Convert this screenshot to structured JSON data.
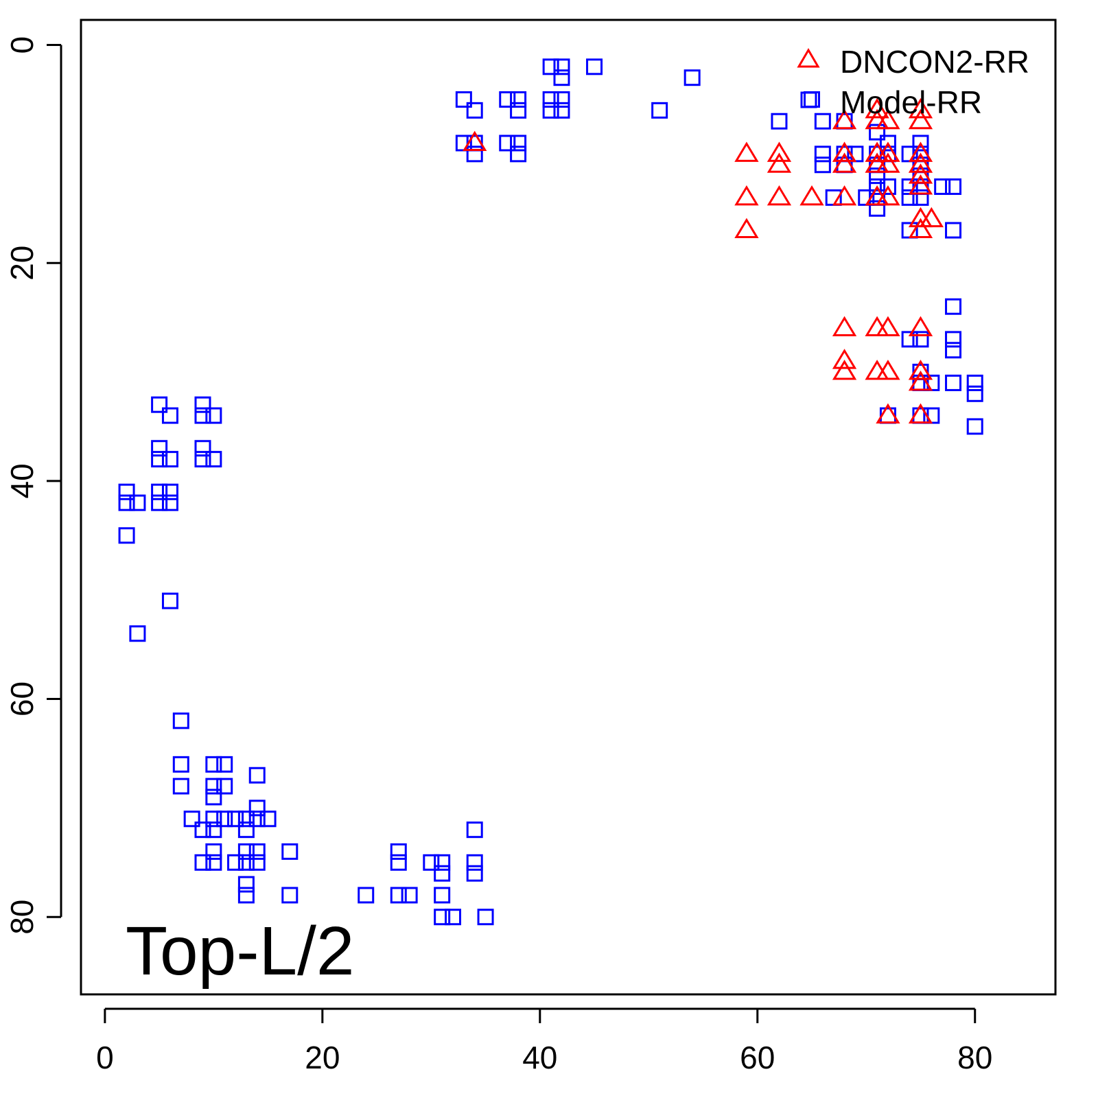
{
  "chart_data": {
    "type": "scatter",
    "title": "",
    "annotation": "Top-L/2",
    "xlabel": "",
    "ylabel": "",
    "xlim": [
      -2.2,
      87.4
    ],
    "ylim": [
      -2.3,
      87.1
    ],
    "y_inverted": true,
    "x_ticks": [
      0,
      20,
      40,
      60,
      80
    ],
    "y_ticks": [
      0,
      20,
      40,
      60,
      80
    ],
    "x_tick_labels": [
      "0",
      "20",
      "40",
      "60",
      "80"
    ],
    "y_tick_labels": [
      "0",
      "20",
      "40",
      "60",
      "80"
    ],
    "grid": false,
    "legend_position": "top-right",
    "series": [
      {
        "name": "DNCON2-RR",
        "marker": "triangle",
        "color": "#ff0000",
        "points": [
          [
            34,
            9
          ],
          [
            59,
            10
          ],
          [
            59,
            14
          ],
          [
            59,
            17
          ],
          [
            62,
            10
          ],
          [
            62,
            11
          ],
          [
            62,
            14
          ],
          [
            65,
            14
          ],
          [
            68,
            7
          ],
          [
            68,
            10
          ],
          [
            68,
            11
          ],
          [
            68,
            14
          ],
          [
            71,
            6
          ],
          [
            71,
            7
          ],
          [
            72,
            7
          ],
          [
            71,
            10
          ],
          [
            72,
            10
          ],
          [
            71,
            11
          ],
          [
            72,
            11
          ],
          [
            71,
            14
          ],
          [
            72,
            14
          ],
          [
            75,
            6
          ],
          [
            75,
            7
          ],
          [
            75,
            10
          ],
          [
            75,
            11
          ],
          [
            75,
            12
          ],
          [
            75,
            13
          ],
          [
            75,
            16
          ],
          [
            76,
            16
          ],
          [
            75,
            17
          ],
          [
            68,
            26
          ],
          [
            71,
            26
          ],
          [
            72,
            26
          ],
          [
            75,
            26
          ],
          [
            68,
            29
          ],
          [
            68,
            30
          ],
          [
            71,
            30
          ],
          [
            72,
            30
          ],
          [
            75,
            30
          ],
          [
            75,
            31
          ],
          [
            72,
            34
          ],
          [
            75,
            34
          ]
        ]
      },
      {
        "name": "Model-RR",
        "marker": "square",
        "color": "#0000ff",
        "points": [
          [
            33,
            5
          ],
          [
            34,
            6
          ],
          [
            33,
            9
          ],
          [
            34,
            9
          ],
          [
            34,
            10
          ],
          [
            37,
            5
          ],
          [
            38,
            5
          ],
          [
            38,
            6
          ],
          [
            37,
            9
          ],
          [
            38,
            9
          ],
          [
            38,
            10
          ],
          [
            41,
            2
          ],
          [
            42,
            2
          ],
          [
            42,
            3
          ],
          [
            41,
            5
          ],
          [
            42,
            5
          ],
          [
            41,
            6
          ],
          [
            42,
            6
          ],
          [
            45,
            2
          ],
          [
            51,
            6
          ],
          [
            54,
            3
          ],
          [
            65,
            5
          ],
          [
            62,
            7
          ],
          [
            66,
            7
          ],
          [
            68,
            7
          ],
          [
            66,
            10
          ],
          [
            66,
            11
          ],
          [
            68,
            10
          ],
          [
            68,
            11
          ],
          [
            69,
            10
          ],
          [
            71,
            8
          ],
          [
            72,
            9
          ],
          [
            71,
            10
          ],
          [
            72,
            10
          ],
          [
            71,
            11
          ],
          [
            71,
            12
          ],
          [
            71,
            13
          ],
          [
            72,
            13
          ],
          [
            71,
            14
          ],
          [
            71,
            15
          ],
          [
            70,
            14
          ],
          [
            67,
            14
          ],
          [
            74,
            10
          ],
          [
            75,
            9
          ],
          [
            75,
            10
          ],
          [
            75,
            11
          ],
          [
            75,
            12
          ],
          [
            75,
            13
          ],
          [
            74,
            13
          ],
          [
            74,
            14
          ],
          [
            75,
            14
          ],
          [
            77,
            13
          ],
          [
            78,
            13
          ],
          [
            74,
            17
          ],
          [
            78,
            17
          ],
          [
            78,
            24
          ],
          [
            74,
            27
          ],
          [
            75,
            27
          ],
          [
            78,
            27
          ],
          [
            78,
            28
          ],
          [
            75,
            30
          ],
          [
            75,
            31
          ],
          [
            76,
            31
          ],
          [
            78,
            31
          ],
          [
            80,
            31
          ],
          [
            80,
            32
          ],
          [
            80,
            35
          ],
          [
            72,
            34
          ],
          [
            75,
            34
          ],
          [
            76,
            34
          ],
          [
            5,
            33
          ],
          [
            6,
            34
          ],
          [
            9,
            33
          ],
          [
            9,
            34
          ],
          [
            10,
            34
          ],
          [
            5,
            37
          ],
          [
            5,
            38
          ],
          [
            6,
            38
          ],
          [
            9,
            37
          ],
          [
            9,
            38
          ],
          [
            10,
            38
          ],
          [
            2,
            41
          ],
          [
            2,
            42
          ],
          [
            3,
            42
          ],
          [
            5,
            41
          ],
          [
            5,
            42
          ],
          [
            6,
            41
          ],
          [
            6,
            42
          ],
          [
            2,
            45
          ],
          [
            6,
            51
          ],
          [
            3,
            54
          ],
          [
            7,
            62
          ],
          [
            7,
            66
          ],
          [
            7,
            68
          ],
          [
            10,
            66
          ],
          [
            11,
            66
          ],
          [
            10,
            68
          ],
          [
            11,
            68
          ],
          [
            10,
            69
          ],
          [
            14,
            67
          ],
          [
            14,
            70
          ],
          [
            8,
            71
          ],
          [
            10,
            71
          ],
          [
            11,
            71
          ],
          [
            12,
            71
          ],
          [
            13,
            71
          ],
          [
            14,
            71
          ],
          [
            15,
            71
          ],
          [
            9,
            72
          ],
          [
            10,
            72
          ],
          [
            13,
            72
          ],
          [
            10,
            74
          ],
          [
            13,
            74
          ],
          [
            14,
            74
          ],
          [
            17,
            74
          ],
          [
            9,
            75
          ],
          [
            10,
            75
          ],
          [
            12,
            75
          ],
          [
            13,
            75
          ],
          [
            14,
            75
          ],
          [
            13,
            77
          ],
          [
            13,
            78
          ],
          [
            17,
            78
          ],
          [
            24,
            78
          ],
          [
            27,
            74
          ],
          [
            27,
            75
          ],
          [
            27,
            78
          ],
          [
            28,
            78
          ],
          [
            30,
            75
          ],
          [
            31,
            75
          ],
          [
            31,
            76
          ],
          [
            31,
            78
          ],
          [
            31,
            80
          ],
          [
            32,
            80
          ],
          [
            35,
            80
          ],
          [
            34,
            72
          ],
          [
            34,
            75
          ],
          [
            34,
            76
          ]
        ]
      }
    ]
  }
}
